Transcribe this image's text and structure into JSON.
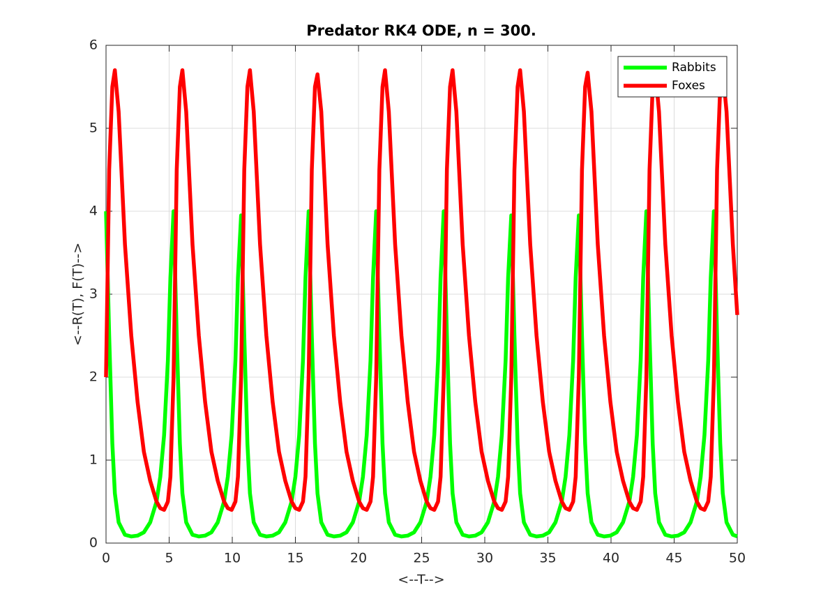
{
  "chart_data": {
    "type": "line",
    "title": "Predator RK4 ODE, n = 300.",
    "xlabel": "<--T-->",
    "ylabel": "<--R(T), F(T)-->",
    "xlim": [
      0,
      50
    ],
    "ylim": [
      0,
      6
    ],
    "xticks": [
      0,
      5,
      10,
      15,
      20,
      25,
      30,
      35,
      40,
      45,
      50
    ],
    "yticks": [
      0,
      1,
      2,
      3,
      4,
      5,
      6
    ],
    "grid": true,
    "legend": "upper right",
    "x": [
      0,
      0.25,
      0.5,
      0.7,
      1,
      1.5,
      2,
      2.5,
      3,
      3.5,
      4,
      4.3,
      4.6,
      4.9,
      5.1,
      5.35,
      5.6,
      5.85,
      6.05,
      6.35,
      6.85,
      7.35,
      7.85,
      8.35,
      8.85,
      9.35,
      9.65,
      9.95,
      10.25,
      10.45,
      10.7,
      10.95,
      11.2,
      11.4,
      11.7,
      12.2,
      12.7,
      13.2,
      13.7,
      14.2,
      14.7,
      15,
      15.3,
      15.6,
      15.8,
      16.05,
      16.3,
      16.55,
      16.75,
      17.05,
      17.55,
      18.05,
      18.55,
      19.05,
      19.55,
      20.05,
      20.35,
      20.65,
      20.95,
      21.15,
      21.4,
      21.65,
      21.9,
      22.1,
      22.4,
      22.9,
      23.4,
      23.9,
      24.4,
      24.9,
      25.4,
      25.7,
      26,
      26.3,
      26.5,
      26.75,
      27,
      27.25,
      27.45,
      27.75,
      28.25,
      28.75,
      29.25,
      29.75,
      30.25,
      30.75,
      31.05,
      31.35,
      31.65,
      31.85,
      32.1,
      32.35,
      32.6,
      32.8,
      33.1,
      33.6,
      34.1,
      34.6,
      35.1,
      35.6,
      36.1,
      36.4,
      36.7,
      37,
      37.2,
      37.45,
      37.7,
      37.95,
      38.15,
      38.45,
      38.95,
      39.45,
      39.95,
      40.45,
      40.95,
      41.45,
      41.75,
      42.05,
      42.35,
      42.55,
      42.8,
      43.05,
      43.3,
      43.5,
      43.8,
      44.3,
      44.8,
      45.3,
      45.8,
      46.3,
      46.8,
      47.1,
      47.4,
      47.7,
      47.9,
      48.15,
      48.4,
      48.65,
      48.85,
      49.15,
      49.65,
      50
    ],
    "series": [
      {
        "name": "Rabbits",
        "color": "#00ff00",
        "values": [
          4,
          2.5,
          1.2,
          0.6,
          0.25,
          0.1,
          0.08,
          0.09,
          0.13,
          0.25,
          0.5,
          0.8,
          1.3,
          2.2,
          3.2,
          4,
          2.5,
          1.2,
          0.6,
          0.25,
          0.1,
          0.08,
          0.09,
          0.13,
          0.25,
          0.5,
          0.8,
          1.3,
          2.2,
          3.2,
          3.95,
          2.5,
          1.2,
          0.6,
          0.25,
          0.1,
          0.08,
          0.09,
          0.13,
          0.25,
          0.5,
          0.8,
          1.3,
          2.2,
          3.2,
          4,
          2.5,
          1.2,
          0.6,
          0.25,
          0.1,
          0.08,
          0.09,
          0.13,
          0.25,
          0.5,
          0.8,
          1.3,
          2.2,
          3.2,
          4,
          2.5,
          1.2,
          0.6,
          0.25,
          0.1,
          0.08,
          0.09,
          0.13,
          0.25,
          0.5,
          0.8,
          1.3,
          2.2,
          3.2,
          4,
          2.5,
          1.2,
          0.6,
          0.25,
          0.1,
          0.08,
          0.09,
          0.13,
          0.25,
          0.5,
          0.8,
          1.3,
          2.2,
          3.2,
          3.95,
          2.5,
          1.2,
          0.6,
          0.25,
          0.1,
          0.08,
          0.09,
          0.13,
          0.25,
          0.5,
          0.8,
          1.3,
          2.2,
          3.2,
          3.95,
          2.5,
          1.2,
          0.6,
          0.25,
          0.1,
          0.08,
          0.09,
          0.13,
          0.25,
          0.5,
          0.8,
          1.3,
          2.2,
          3.2,
          4,
          2.5,
          1.2,
          0.6,
          0.25,
          0.1,
          0.08,
          0.09,
          0.13,
          0.25,
          0.5,
          0.8,
          1.3,
          2.2,
          3.2,
          4,
          2.5,
          1.2,
          0.6,
          0.25,
          0.1,
          0.08
        ]
      },
      {
        "name": "Foxes",
        "color": "#ff0000",
        "values": [
          2,
          4.5,
          5.5,
          5.7,
          5.2,
          3.6,
          2.5,
          1.7,
          1.1,
          0.75,
          0.5,
          0.42,
          0.4,
          0.5,
          0.8,
          2,
          4.5,
          5.5,
          5.7,
          5.2,
          3.6,
          2.5,
          1.7,
          1.1,
          0.75,
          0.5,
          0.42,
          0.4,
          0.5,
          0.8,
          2,
          4.5,
          5.5,
          5.7,
          5.2,
          3.6,
          2.5,
          1.7,
          1.1,
          0.75,
          0.5,
          0.42,
          0.4,
          0.5,
          0.8,
          2,
          4.5,
          5.5,
          5.65,
          5.2,
          3.6,
          2.5,
          1.7,
          1.1,
          0.75,
          0.5,
          0.42,
          0.4,
          0.5,
          0.8,
          2,
          4.5,
          5.5,
          5.7,
          5.2,
          3.6,
          2.5,
          1.7,
          1.1,
          0.75,
          0.5,
          0.42,
          0.4,
          0.5,
          0.8,
          2,
          4.5,
          5.5,
          5.7,
          5.2,
          3.6,
          2.5,
          1.7,
          1.1,
          0.75,
          0.5,
          0.42,
          0.4,
          0.5,
          0.8,
          2,
          4.5,
          5.5,
          5.7,
          5.2,
          3.6,
          2.5,
          1.7,
          1.1,
          0.75,
          0.5,
          0.42,
          0.4,
          0.5,
          0.8,
          2,
          4.5,
          5.5,
          5.67,
          5.2,
          3.6,
          2.5,
          1.7,
          1.1,
          0.75,
          0.5,
          0.42,
          0.4,
          0.5,
          0.8,
          2,
          4.5,
          5.5,
          5.7,
          5.2,
          3.6,
          2.5,
          1.7,
          1.1,
          0.75,
          0.5,
          0.42,
          0.4,
          0.5,
          0.8,
          2,
          4.5,
          5.5,
          5.7,
          5.2,
          3.6,
          2.75
        ]
      }
    ]
  }
}
